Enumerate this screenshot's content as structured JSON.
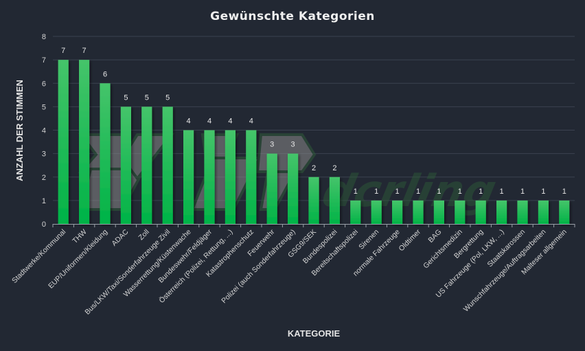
{
  "chart_data": {
    "type": "bar",
    "title": "Gewünschte Kategorien",
    "xlabel": "KATEGORIE",
    "ylabel": "ANZAHL DER STIMMEN",
    "ylim": [
      0,
      8
    ],
    "yticks": [
      0,
      1,
      2,
      3,
      4,
      5,
      6,
      7,
      8
    ],
    "grid": true,
    "legend": "none",
    "bar_color": "#1fbf55",
    "bar_color_top": "#45c46a",
    "categories": [
      "Stadtwerke/Kommunal",
      "THW",
      "EUP/Uniformen/Kleidung",
      "ADAC",
      "Zoll",
      "Bus/LKW/Taxi/Sonderfahrzeuge Zivil",
      "Wasserrettung/Küstenwache",
      "Bundeswehr/Feldjäger",
      "Österreich (Polizei, Rettung, ...)",
      "Katastrophenschutz",
      "Feuerwehr",
      "Polizei (auch Sonderfahrzeuge)",
      "GSG9/SEK",
      "Bundespolizei",
      "Bereitschaftspolizei",
      "Sirenen",
      "normale Fahrzeuge",
      "Oldtimer",
      "BAG",
      "Gerichtsmedizin",
      "Bergrettung",
      "US Fahrzeuge (Pol, LKW, ...)",
      "Staatskarossen",
      "Wunschfahrzeuge/Auftragsarbeiten",
      "Malteser allgemein"
    ],
    "values": [
      7,
      7,
      6,
      5,
      5,
      5,
      4,
      4,
      4,
      4,
      3,
      3,
      2,
      2,
      1,
      1,
      1,
      1,
      1,
      1,
      1,
      1,
      1,
      1,
      1
    ],
    "data_labels": [
      "7",
      "7",
      "6",
      "5",
      "5",
      "5",
      "4",
      "4",
      "4",
      "4",
      "3",
      "3",
      "2",
      "2",
      "1",
      "1",
      "1",
      "1",
      "1",
      "1",
      "1",
      "1",
      "1",
      "1",
      "1"
    ]
  }
}
